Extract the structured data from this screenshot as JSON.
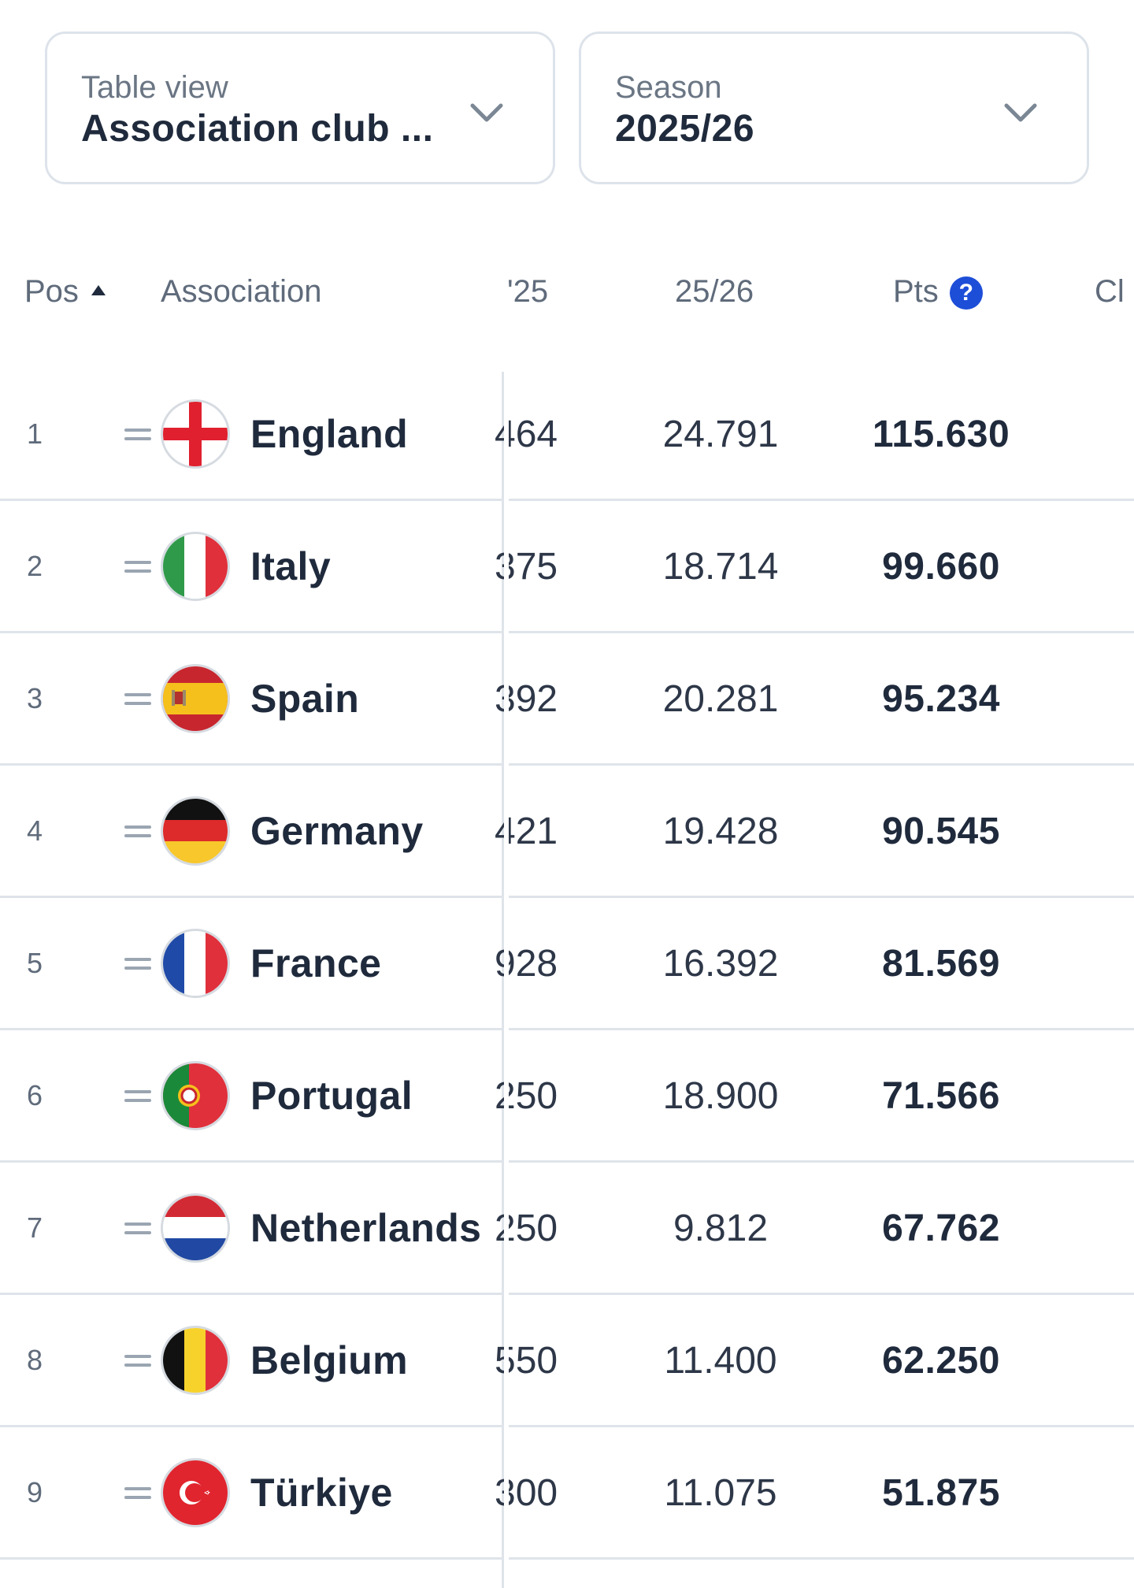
{
  "filters": {
    "table_view": {
      "label": "Table view",
      "value": "Association club ..."
    },
    "season": {
      "label": "Season",
      "value": "2025/26"
    }
  },
  "table": {
    "headers": {
      "pos": "Pos",
      "association": "Association",
      "col_25": "'25",
      "col_2526": "25/26",
      "pts": "Pts",
      "pts_help": "?",
      "clubs": "Cl"
    },
    "sort": {
      "column": "Pos",
      "direction": "ascending"
    },
    "rows": [
      {
        "pos": "1",
        "name": "England",
        "flag": "england-flag",
        "v25": "464",
        "v2526": "24.791",
        "pts": "115.630"
      },
      {
        "pos": "2",
        "name": "Italy",
        "flag": "italy-flag",
        "v25": "375",
        "v2526": "18.714",
        "pts": "99.660"
      },
      {
        "pos": "3",
        "name": "Spain",
        "flag": "spain-flag",
        "v25": "392",
        "v2526": "20.281",
        "pts": "95.234"
      },
      {
        "pos": "4",
        "name": "Germany",
        "flag": "germany-flag",
        "v25": "421",
        "v2526": "19.428",
        "pts": "90.545"
      },
      {
        "pos": "5",
        "name": "France",
        "flag": "france-flag",
        "v25": "928",
        "v2526": "16.392",
        "pts": "81.569"
      },
      {
        "pos": "6",
        "name": "Portugal",
        "flag": "portugal-flag",
        "v25": "250",
        "v2526": "18.900",
        "pts": "71.566"
      },
      {
        "pos": "7",
        "name": "Netherlands",
        "flag": "netherlands-flag",
        "v25": "250",
        "v2526": "9.812",
        "pts": "67.762"
      },
      {
        "pos": "8",
        "name": "Belgium",
        "flag": "belgium-flag",
        "v25": "550",
        "v2526": "11.400",
        "pts": "62.250"
      },
      {
        "pos": "9",
        "name": "Türkiye",
        "flag": "turkiye-flag",
        "v25": "300",
        "v2526": "11.075",
        "pts": "51.875"
      }
    ]
  },
  "colors": {
    "accent": "#1d4ed8",
    "divider": "#dfe4ea",
    "text": "#1f2a3c",
    "muted": "#5f6b7b"
  }
}
